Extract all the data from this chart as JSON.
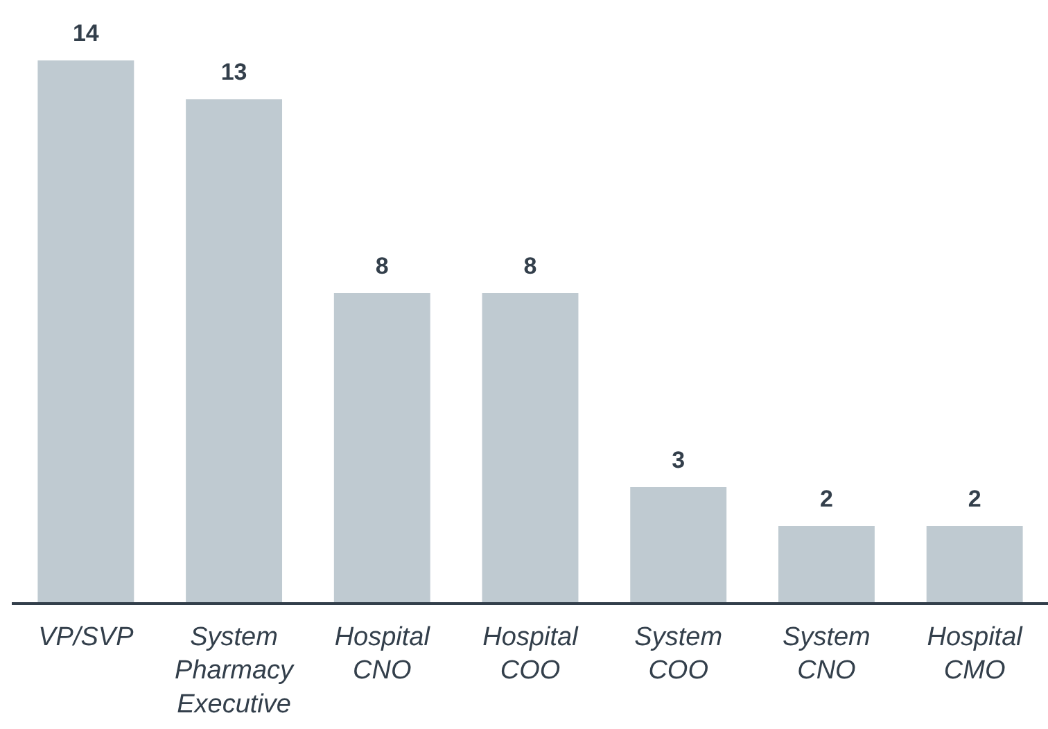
{
  "chart_data": {
    "type": "bar",
    "categories": [
      "VP/SVP",
      "System Pharmacy Executive",
      "Hospital CNO",
      "Hospital COO",
      "System COO",
      "System CNO",
      "Hospital CMO"
    ],
    "values": [
      14,
      13,
      8,
      8,
      3,
      2,
      2
    ],
    "color": "#bfcad1",
    "data_labels": true
  }
}
